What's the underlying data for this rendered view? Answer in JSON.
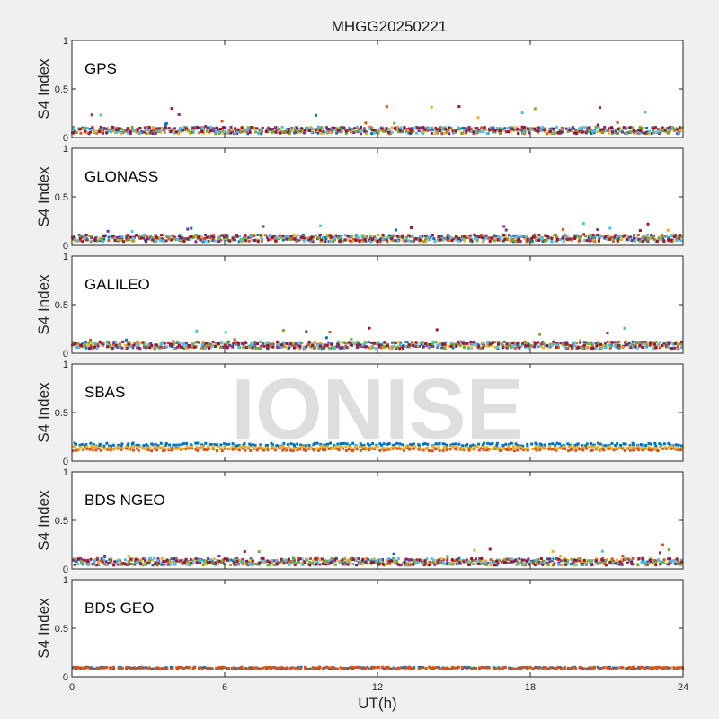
{
  "figure": {
    "title": "MHGG20250221",
    "watermark": "IONISE",
    "xlabel": "UT(h)",
    "ylabel": "S4 Index",
    "x_ticks": [
      0,
      6,
      12,
      18,
      24
    ],
    "y_ticks": [
      0,
      0.5,
      1
    ]
  },
  "colors": [
    "#0072BD",
    "#D95319",
    "#EDB120",
    "#7E2F8E",
    "#77AC30",
    "#4DBEEE",
    "#A2142F"
  ],
  "chart_data": [
    {
      "type": "scatter",
      "label": "GPS",
      "xlim": [
        0,
        24
      ],
      "ylim": [
        0,
        1
      ],
      "typical_s4": 0.07,
      "max_s4": 0.33,
      "series_count": 7
    },
    {
      "type": "scatter",
      "label": "GLONASS",
      "xlim": [
        0,
        24
      ],
      "ylim": [
        0,
        1
      ],
      "typical_s4": 0.07,
      "max_s4": 0.25,
      "series_count": 7
    },
    {
      "type": "scatter",
      "label": "GALILEO",
      "xlim": [
        0,
        24
      ],
      "ylim": [
        0,
        1
      ],
      "typical_s4": 0.08,
      "max_s4": 0.26,
      "series_count": 7
    },
    {
      "type": "scatter",
      "label": "SBAS",
      "xlim": [
        0,
        24
      ],
      "ylim": [
        0,
        1
      ],
      "typical_s4": 0.14,
      "max_s4": 0.22,
      "series_count": 3
    },
    {
      "type": "scatter",
      "label": "BDS NGEO",
      "xlim": [
        0,
        24
      ],
      "ylim": [
        0,
        1
      ],
      "typical_s4": 0.07,
      "max_s4": 0.25,
      "series_count": 7
    },
    {
      "type": "scatter",
      "label": "BDS GEO",
      "xlim": [
        0,
        24
      ],
      "ylim": [
        0,
        1
      ],
      "typical_s4": 0.09,
      "max_s4": 0.11,
      "series_count": 2
    }
  ]
}
